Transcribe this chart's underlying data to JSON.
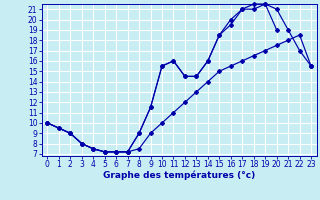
{
  "xlabel": "Graphe des températures (°c)",
  "xlim": [
    -0.5,
    23.5
  ],
  "ylim": [
    6.8,
    21.5
  ],
  "xticks": [
    0,
    1,
    2,
    3,
    4,
    5,
    6,
    7,
    8,
    9,
    10,
    11,
    12,
    13,
    14,
    15,
    16,
    17,
    18,
    19,
    20,
    21,
    22,
    23
  ],
  "yticks": [
    7,
    8,
    9,
    10,
    11,
    12,
    13,
    14,
    15,
    16,
    17,
    18,
    19,
    20,
    21
  ],
  "bg_color": "#c8eef4",
  "grid_color": "#ffffff",
  "line_color": "#0000aa",
  "line1_x": [
    0,
    1,
    2,
    3,
    4,
    5,
    6,
    7,
    8,
    9,
    10,
    11,
    12,
    13,
    14,
    15,
    16,
    17,
    18,
    19,
    20,
    21,
    22,
    23
  ],
  "line1_y": [
    10.0,
    9.5,
    9.0,
    8.0,
    7.5,
    7.2,
    7.2,
    7.2,
    9.0,
    11.5,
    15.5,
    16.0,
    14.5,
    14.5,
    16.0,
    18.5,
    19.5,
    21.0,
    21.0,
    21.5,
    19.0,
    null,
    null,
    15.5
  ],
  "line2_x": [
    0,
    1,
    2,
    3,
    4,
    5,
    6,
    7,
    8,
    9,
    10,
    11,
    12,
    13,
    14,
    15,
    16,
    17,
    18,
    19,
    20,
    21,
    22,
    23
  ],
  "line2_y": [
    10.0,
    9.5,
    9.0,
    8.0,
    7.5,
    7.2,
    7.2,
    7.2,
    9.0,
    11.5,
    15.5,
    16.0,
    14.5,
    14.5,
    16.0,
    18.5,
    20.0,
    21.0,
    21.5,
    21.5,
    21.0,
    19.0,
    17.0,
    15.5
  ],
  "line3_x": [
    0,
    2,
    3,
    4,
    5,
    6,
    7,
    8,
    9,
    10,
    11,
    12,
    13,
    14,
    15,
    16,
    17,
    18,
    19,
    20,
    21,
    22,
    23
  ],
  "line3_y": [
    10.0,
    9.0,
    8.0,
    7.5,
    7.2,
    7.2,
    7.2,
    7.5,
    9.0,
    10.0,
    11.0,
    12.0,
    13.0,
    14.0,
    15.0,
    15.5,
    16.0,
    16.5,
    17.0,
    17.5,
    18.0,
    18.5,
    15.5
  ],
  "tickfontsize": 5.5,
  "labelfontsize": 6.5
}
